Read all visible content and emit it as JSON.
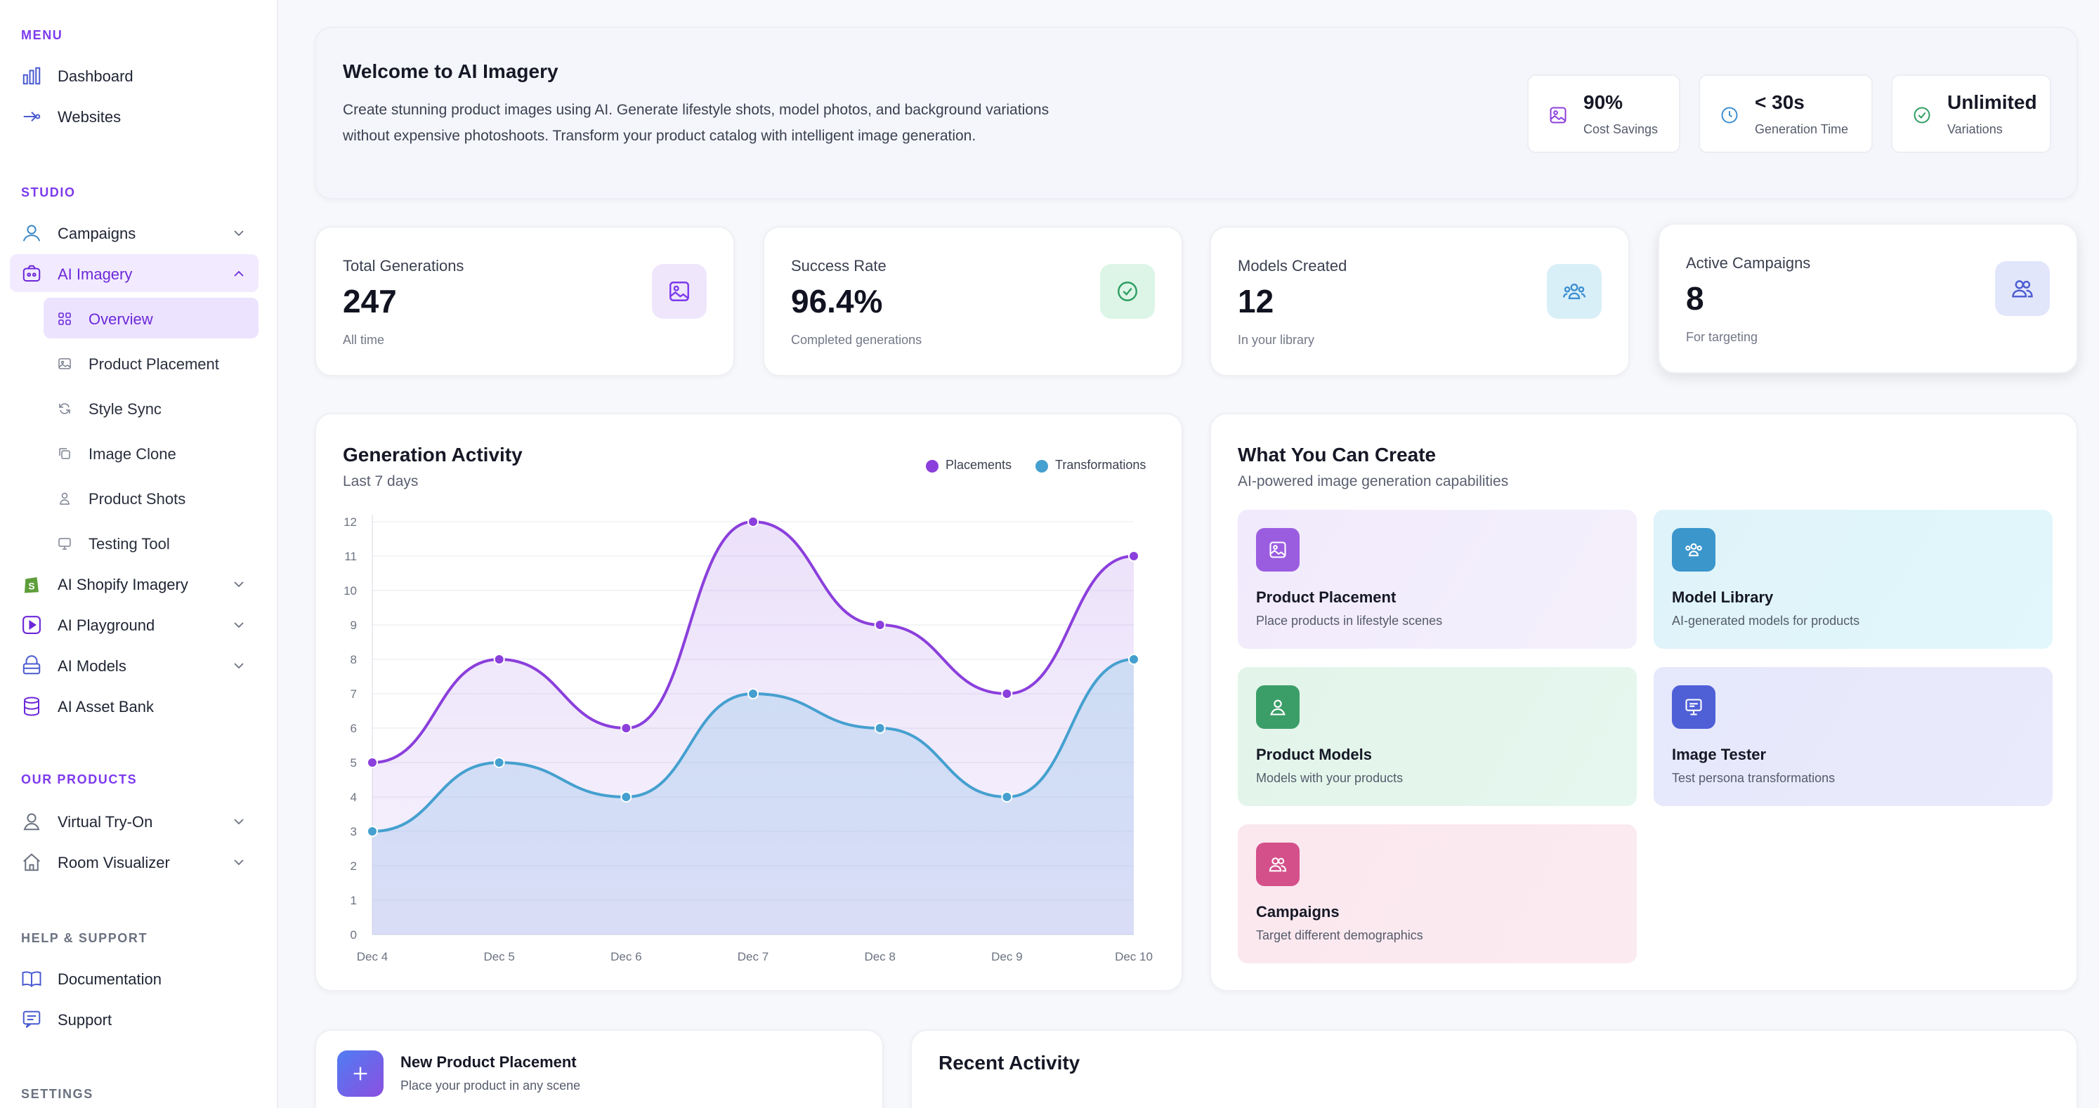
{
  "colors": {
    "accent": "#7c3aed",
    "placements": "#8b3fdc",
    "transformations": "#45a0cf"
  },
  "sidebar": {
    "menu_label": "MENU",
    "studio_label": "STUDIO",
    "products_label": "OUR PRODUCTS",
    "help_label": "HELP & SUPPORT",
    "settings_label": "SETTINGS",
    "menu_items": [
      {
        "label": "Dashboard",
        "icon": "bar-chart-icon"
      },
      {
        "label": "Websites",
        "icon": "globe-icon"
      }
    ],
    "studio_items": [
      {
        "label": "Campaigns",
        "icon": "user-icon"
      },
      {
        "label": "AI Imagery",
        "icon": "ai-imagery-icon"
      },
      {
        "label": "AI Shopify Imagery",
        "icon": "shopify-icon"
      },
      {
        "label": "AI Playground",
        "icon": "play-icon"
      },
      {
        "label": "AI Models",
        "icon": "layers-icon"
      },
      {
        "label": "AI Asset Bank",
        "icon": "database-icon"
      }
    ],
    "ai_imagery_sub": [
      {
        "label": "Overview",
        "icon": "grid-icon"
      },
      {
        "label": "Product Placement",
        "icon": "image-icon"
      },
      {
        "label": "Style Sync",
        "icon": "refresh-icon"
      },
      {
        "label": "Image Clone",
        "icon": "copy-icon"
      },
      {
        "label": "Product Shots",
        "icon": "person-icon"
      },
      {
        "label": "Testing Tool",
        "icon": "monitor-icon"
      }
    ],
    "product_items": [
      {
        "label": "Virtual Try-On",
        "icon": "user-icon"
      },
      {
        "label": "Room Visualizer",
        "icon": "home-icon"
      }
    ],
    "help_items": [
      {
        "label": "Documentation",
        "icon": "book-icon"
      },
      {
        "label": "Support",
        "icon": "chat-icon"
      }
    ]
  },
  "welcome": {
    "title": "Welcome to AI Imagery",
    "description": "Create stunning product images using AI. Generate lifestyle shots, model photos, and background variations without expensive photoshoots. Transform your product catalog with intelligent image generation.",
    "pills": [
      {
        "value": "90%",
        "label": "Cost Savings",
        "icon": "image-icon"
      },
      {
        "value": "< 30s",
        "label": "Generation Time",
        "icon": "clock-icon"
      },
      {
        "value": "Unlimited",
        "label": "Variations",
        "icon": "check-circle-icon"
      }
    ]
  },
  "stats": [
    {
      "title": "Total Generations",
      "value": "247",
      "sub": "All time",
      "icon": "image-icon"
    },
    {
      "title": "Success Rate",
      "value": "96.4%",
      "sub": "Completed generations",
      "icon": "check-circle-icon"
    },
    {
      "title": "Models Created",
      "value": "12",
      "sub": "In your library",
      "icon": "users-icon"
    },
    {
      "title": "Active Campaigns",
      "value": "8",
      "sub": "For targeting",
      "icon": "users-icon"
    }
  ],
  "activity": {
    "title": "Generation Activity",
    "subtitle": "Last 7 days"
  },
  "chart_data": {
    "type": "area",
    "title": "Generation Activity",
    "categories": [
      "Dec 4",
      "Dec 5",
      "Dec 6",
      "Dec 7",
      "Dec 8",
      "Dec 9",
      "Dec 10"
    ],
    "series": [
      {
        "name": "Placements",
        "values": [
          5,
          8,
          6,
          12,
          9,
          7,
          11
        ]
      },
      {
        "name": "Transformations",
        "values": [
          3,
          5,
          4,
          7,
          6,
          4,
          8
        ]
      }
    ],
    "ylim": [
      0,
      12
    ],
    "yticks": [
      "0",
      "1",
      "2",
      "3",
      "4",
      "5",
      "6",
      "7",
      "8",
      "9",
      "10",
      "11",
      "12"
    ],
    "legend": "top-right"
  },
  "create": {
    "title": "What You Can Create",
    "subtitle": "AI-powered image generation capabilities",
    "tiles": [
      {
        "title": "Product Placement",
        "sub": "Place products in lifestyle scenes",
        "icon": "image-icon"
      },
      {
        "title": "Model Library",
        "sub": "AI-generated models for products",
        "icon": "users-icon"
      },
      {
        "title": "Product Models",
        "sub": "Models with your products",
        "icon": "person-icon"
      },
      {
        "title": "Image Tester",
        "sub": "Test persona transformations",
        "icon": "monitor-icon"
      },
      {
        "title": "Campaigns",
        "sub": "Target different demographics",
        "icon": "users-icon"
      }
    ]
  },
  "new_placement": {
    "title": "New Product Placement",
    "sub": "Place your product in any scene"
  },
  "recent": {
    "title": "Recent Activity"
  }
}
